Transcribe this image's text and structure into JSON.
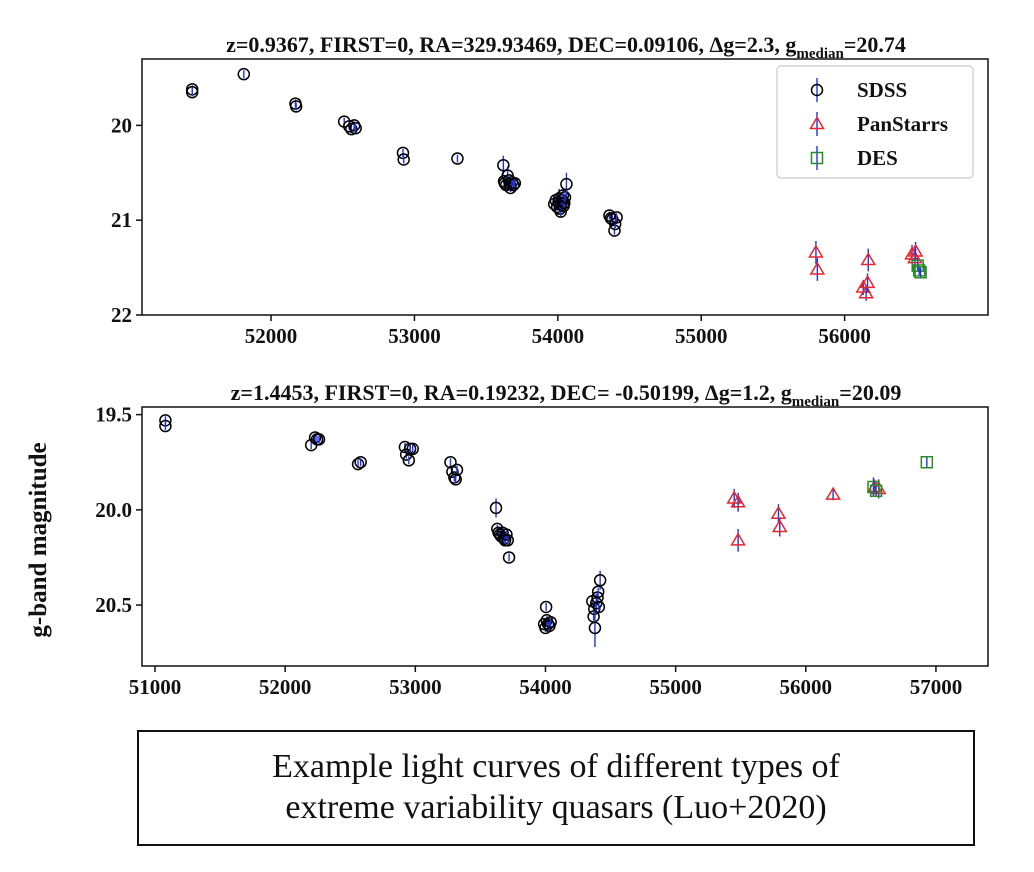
{
  "caption": {
    "line1": "Example light curves of different types of",
    "line2": "extreme variability quasars (Luo+2020)"
  },
  "shared_ylabel": "g-band magnitude",
  "legend": {
    "location": "upper right of top panel",
    "entries": [
      {
        "label": "SDSS",
        "marker": "circle",
        "color": "#000000",
        "errcolor": "#2233dd"
      },
      {
        "label": "PanStarrs",
        "marker": "triangle",
        "color": "#e8262d",
        "errcolor": "#2233dd"
      },
      {
        "label": "DES",
        "marker": "square",
        "color": "#2a8a2a",
        "errcolor": "#2233dd"
      }
    ]
  },
  "chart_data": [
    {
      "type": "scatter",
      "title_main": "z=0.9367,  FIRST=0,  RA=329.93469,  DEC=0.09106,  Δg=2.3,  g",
      "title_sub": "median",
      "title_tail": "=20.74",
      "xlim": [
        51100,
        57000
      ],
      "ylim": [
        22,
        19.3
      ],
      "y_inverted": true,
      "xticks": [
        52000,
        53000,
        54000,
        55000,
        56000
      ],
      "yticks": [
        20,
        21,
        22
      ],
      "series": [
        {
          "name": "SDSS",
          "marker": "circle",
          "points": [
            [
              51450,
              19.62,
              0
            ],
            [
              51450,
              19.65,
              0
            ],
            [
              51810,
              19.46,
              0
            ],
            [
              52170,
              19.77,
              0
            ],
            [
              52175,
              19.8,
              0
            ],
            [
              52510,
              19.96,
              0
            ],
            [
              52545,
              20.01,
              0
            ],
            [
              52560,
              20.04,
              0
            ],
            [
              52580,
              20.0,
              0
            ],
            [
              52590,
              20.03,
              0
            ],
            [
              52920,
              20.29,
              0
            ],
            [
              52925,
              20.36,
              0
            ],
            [
              53300,
              20.35,
              0
            ],
            [
              53620,
              20.42,
              0.1
            ],
            [
              53625,
              20.59,
              0
            ],
            [
              53630,
              20.61,
              0
            ],
            [
              53640,
              20.63,
              0
            ],
            [
              53650,
              20.53,
              0.1
            ],
            [
              53660,
              20.58,
              0
            ],
            [
              53665,
              20.62,
              0.05
            ],
            [
              53670,
              20.66,
              0
            ],
            [
              53680,
              20.6,
              0
            ],
            [
              53690,
              20.63,
              0.05
            ],
            [
              53700,
              20.61,
              0
            ],
            [
              53975,
              20.83,
              0
            ],
            [
              53985,
              20.79,
              0
            ],
            [
              53995,
              20.86,
              0
            ],
            [
              54005,
              20.81,
              0
            ],
            [
              54010,
              20.77,
              0.1
            ],
            [
              54015,
              20.88,
              0
            ],
            [
              54020,
              20.91,
              0.05
            ],
            [
              54025,
              20.84,
              0
            ],
            [
              54030,
              20.79,
              0
            ],
            [
              54035,
              20.74,
              0.05
            ],
            [
              54040,
              20.85,
              0
            ],
            [
              54045,
              20.82,
              0
            ],
            [
              54050,
              20.76,
              0
            ],
            [
              54060,
              20.62,
              0.12
            ],
            [
              54360,
              20.95,
              0
            ],
            [
              54370,
              20.98,
              0
            ],
            [
              54380,
              20.99,
              0
            ],
            [
              54395,
              21.11,
              0
            ],
            [
              54400,
              21.04,
              0
            ],
            [
              54410,
              20.97,
              0
            ]
          ]
        },
        {
          "name": "PanStarrs",
          "marker": "triangle",
          "points": [
            [
              55800,
              21.34,
              0.12
            ],
            [
              55810,
              21.52,
              0.12
            ],
            [
              56130,
              21.71,
              0.08
            ],
            [
              56150,
              21.77,
              0.08
            ],
            [
              56160,
              21.66,
              0.1
            ],
            [
              56165,
              21.42,
              0.12
            ],
            [
              56470,
              21.36,
              0.1
            ],
            [
              56490,
              21.4,
              0.1
            ],
            [
              56495,
              21.33,
              0.1
            ]
          ]
        },
        {
          "name": "DES",
          "marker": "square",
          "points": [
            [
              56510,
              21.48,
              0.05
            ],
            [
              56520,
              21.53,
              0.05
            ],
            [
              56530,
              21.55,
              0.05
            ]
          ]
        }
      ]
    },
    {
      "type": "scatter",
      "title_main": "z=1.4453,  FIRST=0,  RA=0.19232,  DEC= -0.50199,  Δg=1.2,  g",
      "title_sub": "median",
      "title_tail": "=20.09",
      "xlim": [
        50900,
        57400
      ],
      "ylim": [
        20.82,
        19.46
      ],
      "y_inverted": true,
      "xticks": [
        51000,
        52000,
        53000,
        54000,
        55000,
        56000,
        57000
      ],
      "yticks": [
        19.5,
        20.0,
        20.5
      ],
      "series": [
        {
          "name": "SDSS",
          "marker": "circle",
          "points": [
            [
              51080,
              19.53,
              0
            ],
            [
              51080,
              19.56,
              0
            ],
            [
              52200,
              19.66,
              0
            ],
            [
              52230,
              19.62,
              0
            ],
            [
              52245,
              19.63,
              0
            ],
            [
              52260,
              19.63,
              0
            ],
            [
              52560,
              19.76,
              0
            ],
            [
              52580,
              19.75,
              0
            ],
            [
              52920,
              19.67,
              0
            ],
            [
              52930,
              19.71,
              0
            ],
            [
              52950,
              19.74,
              0
            ],
            [
              52960,
              19.68,
              0
            ],
            [
              52980,
              19.68,
              0
            ],
            [
              53270,
              19.75,
              0
            ],
            [
              53285,
              19.8,
              0
            ],
            [
              53300,
              19.83,
              0
            ],
            [
              53310,
              19.84,
              0
            ],
            [
              53320,
              19.79,
              0
            ],
            [
              53620,
              19.99,
              0.05
            ],
            [
              53630,
              20.1,
              0
            ],
            [
              53640,
              20.12,
              0
            ],
            [
              53650,
              20.13,
              0
            ],
            [
              53660,
              20.14,
              0
            ],
            [
              53670,
              20.12,
              0
            ],
            [
              53680,
              20.15,
              0
            ],
            [
              53690,
              20.16,
              0
            ],
            [
              53700,
              20.13,
              0
            ],
            [
              53710,
              20.16,
              0
            ],
            [
              53720,
              20.25,
              0
            ],
            [
              53990,
              20.6,
              0
            ],
            [
              54000,
              20.62,
              0
            ],
            [
              54005,
              20.51,
              0
            ],
            [
              54010,
              20.58,
              0
            ],
            [
              54020,
              20.6,
              0
            ],
            [
              54030,
              20.61,
              0
            ],
            [
              54040,
              20.59,
              0
            ],
            [
              54360,
              20.48,
              0
            ],
            [
              54370,
              20.56,
              0
            ],
            [
              54375,
              20.52,
              0
            ],
            [
              54380,
              20.62,
              0.1
            ],
            [
              54390,
              20.49,
              0.05
            ],
            [
              54400,
              20.46,
              0
            ],
            [
              54405,
              20.43,
              0
            ],
            [
              54410,
              20.51,
              0
            ],
            [
              54420,
              20.37,
              0.05
            ]
          ]
        },
        {
          "name": "PanStarrs",
          "marker": "triangle",
          "points": [
            [
              55450,
              19.94,
              0.05
            ],
            [
              55480,
              19.96,
              0.05
            ],
            [
              55480,
              20.16,
              0.06
            ],
            [
              55790,
              20.02,
              0.05
            ],
            [
              55800,
              20.09,
              0.05
            ],
            [
              56210,
              19.92,
              0.03
            ],
            [
              56530,
              19.88,
              0.03
            ],
            [
              56560,
              19.89,
              0.05
            ]
          ]
        },
        {
          "name": "DES",
          "marker": "square",
          "points": [
            [
              56520,
              19.88,
              0.05
            ],
            [
              56540,
              19.9,
              0.03
            ],
            [
              56930,
              19.75,
              0.03
            ]
          ]
        }
      ]
    }
  ]
}
